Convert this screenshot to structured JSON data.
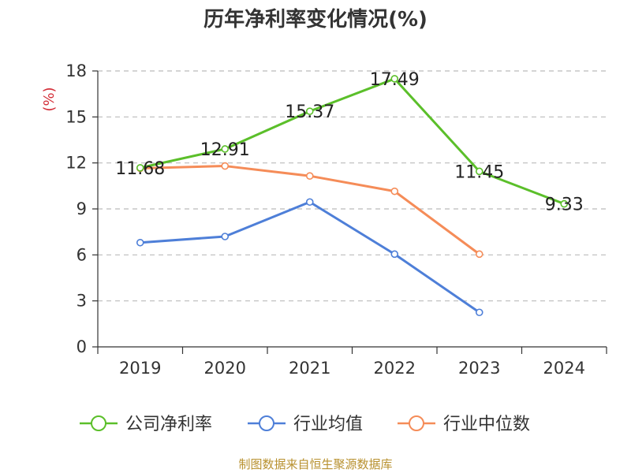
{
  "chart_data": {
    "type": "line",
    "title": "历年净利率变化情况(%)",
    "ylabel": "(%)",
    "xlabel": "",
    "categories": [
      "2019",
      "2020",
      "2021",
      "2022",
      "2023",
      "2024"
    ],
    "ylim": [
      0,
      18
    ],
    "yticks": [
      0,
      3,
      6,
      9,
      12,
      15,
      18
    ],
    "grid": "horizontal-dashed",
    "legend": "bottom-center",
    "series": [
      {
        "name": "公司净利率",
        "color": "#5bbf2a",
        "values": [
          11.68,
          12.91,
          15.37,
          17.49,
          11.45,
          9.33
        ],
        "labels": [
          "11.68",
          "12.91",
          "15.37",
          "17.49",
          "11.45",
          "9.33"
        ]
      },
      {
        "name": "行业均值",
        "color": "#4e7fd8",
        "values": [
          6.8,
          7.2,
          9.45,
          6.05,
          2.25,
          null
        ]
      },
      {
        "name": "行业中位数",
        "color": "#f58c58",
        "values": [
          11.65,
          11.8,
          11.15,
          10.15,
          6.05,
          null
        ]
      }
    ]
  },
  "source_note": "制图数据来自恒生聚源数据库",
  "colors": {
    "title": "#333333",
    "ylabel": "#d4303a",
    "source": "#b8912f",
    "grid": "#bbbbbb",
    "axis": "#333333"
  }
}
